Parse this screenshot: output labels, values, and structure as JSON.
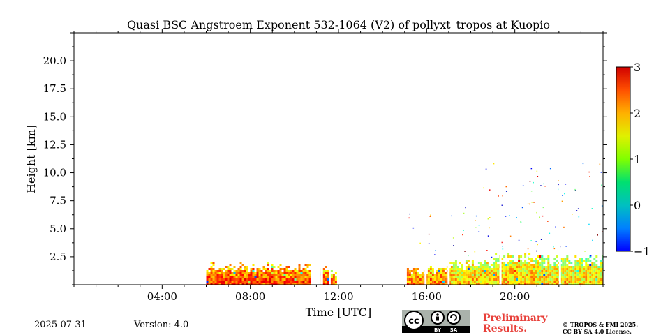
{
  "chart_data": {
    "type": "heatmap",
    "title": "Quasi BSC Angstroem Exponent 532-1064 (V2) of pollyxt_tropos at Kuopio",
    "xlabel": "Time [UTC]",
    "ylabel": "Height [km]",
    "x_range_hours": [
      0,
      24
    ],
    "ylim": [
      0,
      22.5
    ],
    "x_ticks": [
      "04:00",
      "08:00",
      "12:00",
      "16:00",
      "20:00"
    ],
    "x_tick_hours": [
      4,
      8,
      12,
      16,
      20
    ],
    "y_ticks": [
      "2.5",
      "5.0",
      "7.5",
      "10.0",
      "12.5",
      "15.0",
      "17.5",
      "20.0"
    ],
    "y_tick_values": [
      2.5,
      5.0,
      7.5,
      10.0,
      12.5,
      15.0,
      17.5,
      20.0
    ],
    "colorbar": {
      "min": -1,
      "max": 3,
      "ticks": [
        "3",
        "2",
        "1",
        "0",
        "−1"
      ],
      "tick_values": [
        3,
        2,
        1,
        0,
        -1
      ],
      "colormap": "jet"
    },
    "data_regions": [
      {
        "start_hour": 6.0,
        "end_hour": 10.75,
        "top_km": 1.6,
        "typical_value": 2.3
      },
      {
        "start_hour": 11.2,
        "end_hour": 11.55,
        "top_km": 1.3,
        "typical_value": 2.2
      },
      {
        "start_hour": 11.65,
        "end_hour": 11.85,
        "top_km": 1.0,
        "typical_value": 2.1
      },
      {
        "start_hour": 15.1,
        "end_hour": 17.0,
        "top_km": 1.3,
        "typical_value": 2.1
      },
      {
        "start_hour": 17.0,
        "end_hour": 19.0,
        "top_km": 1.9,
        "typical_value": 1.8
      },
      {
        "start_hour": 19.0,
        "end_hour": 21.0,
        "top_km": 2.5,
        "typical_value": 1.8
      },
      {
        "start_hour": 21.0,
        "end_hour": 24.0,
        "top_km": 2.3,
        "typical_value": 1.7
      }
    ],
    "gaps_hours": [
      10.75,
      11.2,
      15.9,
      16.95,
      19.3,
      22.0
    ],
    "grid": false,
    "legend": "right (colorbar)"
  },
  "footer": {
    "date": "2025-07-31",
    "version": "Version: 4.0",
    "preliminary_line1": "Preliminary",
    "preliminary_line2": "Results.",
    "copyright_line1": "© TROPOS & FMI 2025.",
    "copyright_line2": "CC BY SA 4.0 License."
  },
  "license_badge": {
    "icon": "cc-by-sa-icon",
    "by": "BY",
    "sa": "SA"
  }
}
